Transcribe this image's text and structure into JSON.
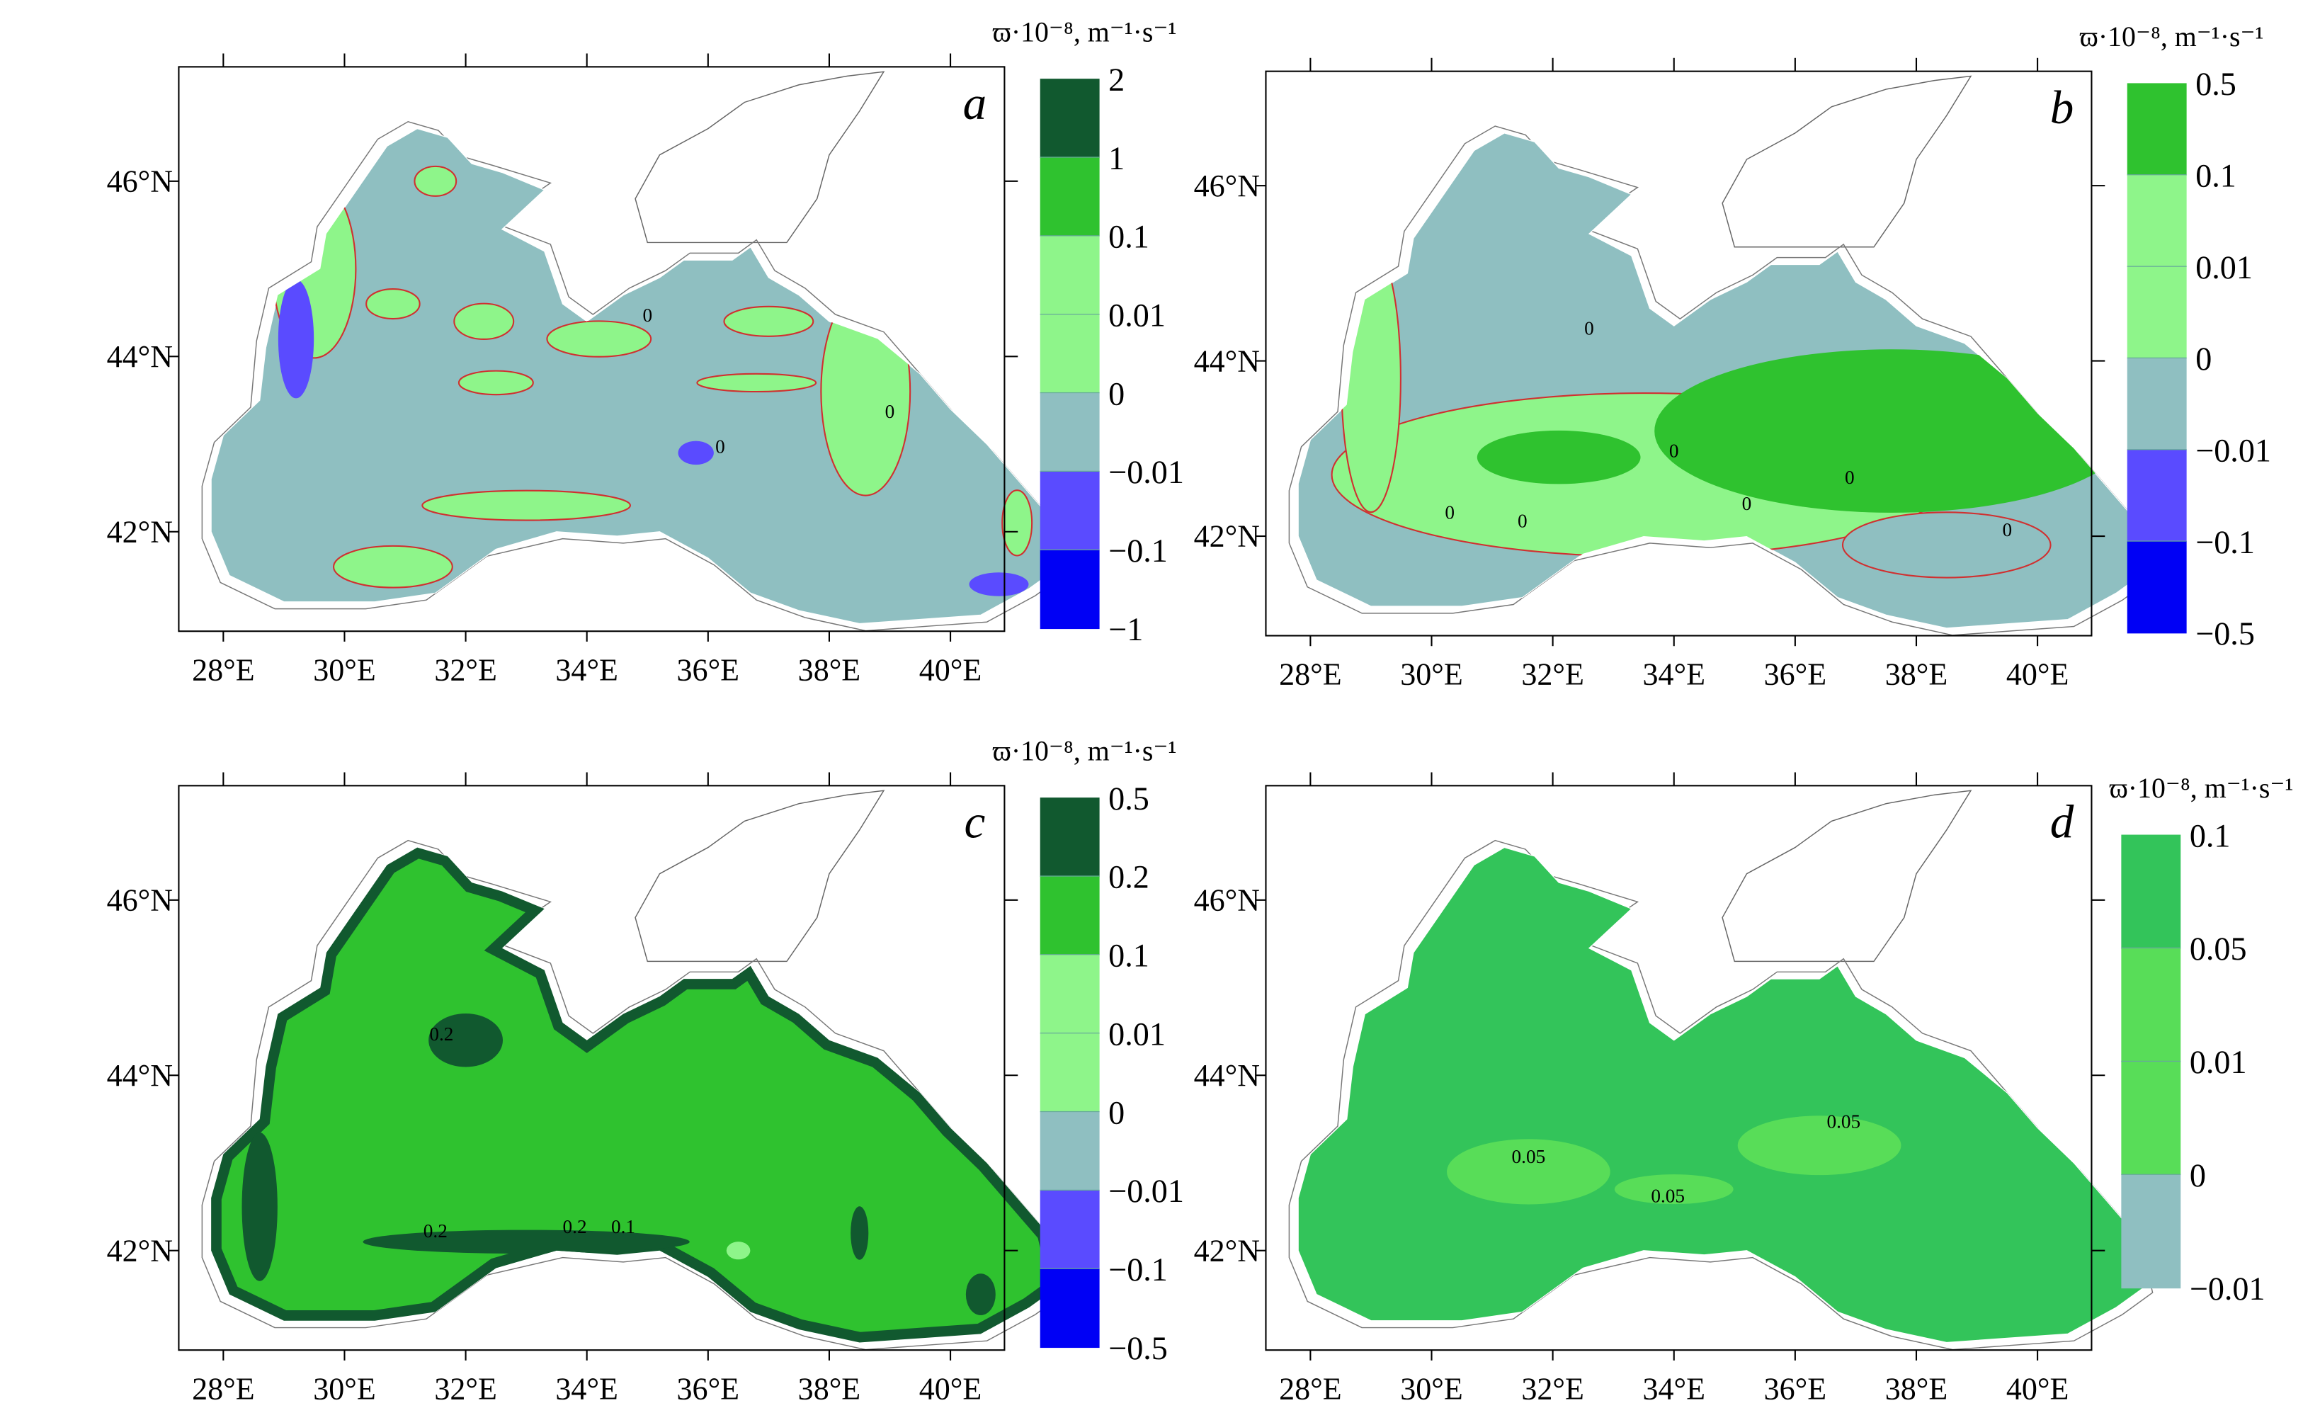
{
  "axes": {
    "lon_ticks": [
      "28°E",
      "30°E",
      "32°E",
      "34°E",
      "36°E",
      "38°E",
      "40°E"
    ],
    "lat_ticks": [
      "46°N",
      "44°N",
      "42°N"
    ]
  },
  "colors": {
    "dark_green": "#11592f",
    "green": "#2fc22f",
    "light_green": "#8ef58a",
    "teal": "#8fbfc1",
    "blue": "#5a4bff",
    "deep_blue": "#0000f5",
    "d_green": "#33c45a",
    "d_light_green": "#58dd58",
    "contour_red": "#d03030"
  },
  "panels": [
    {
      "letter": "a",
      "colorbar_title": "ϖ·10⁻⁸, m⁻¹·s⁻¹",
      "colorbar_labels": [
        "2",
        "1",
        "0.1",
        "0.01",
        "0",
        "−0.01",
        "−0.1",
        "−1"
      ],
      "colorbar_colors": [
        "#11592f",
        "#2fc22f",
        "#8ef58a",
        "#8ef58a",
        "#8fbfc1",
        "#5a4bff",
        "#0000f5"
      ],
      "contour_labels": [
        "0",
        "0",
        "0"
      ]
    },
    {
      "letter": "b",
      "colorbar_title": "ϖ·10⁻⁸, m⁻¹·s⁻¹",
      "colorbar_labels": [
        "0.5",
        "0.1",
        "0.01",
        "0",
        "−0.01",
        "−0.1",
        "−0.5"
      ],
      "colorbar_colors": [
        "#2fc22f",
        "#8ef58a",
        "#8ef58a",
        "#8fbfc1",
        "#5a4bff",
        "#0000f5"
      ],
      "contour_labels": [
        "0",
        "0",
        "0",
        "0",
        "0",
        "0",
        "0"
      ]
    },
    {
      "letter": "c",
      "colorbar_title": "ϖ·10⁻⁸, m⁻¹·s⁻¹",
      "colorbar_labels": [
        "0.5",
        "0.2",
        "0.1",
        "0.01",
        "0",
        "−0.01",
        "−0.1",
        "−0.5"
      ],
      "colorbar_colors": [
        "#11592f",
        "#2fc22f",
        "#8ef58a",
        "#8ef58a",
        "#8fbfc1",
        "#5a4bff",
        "#0000f5"
      ],
      "contour_labels": [
        "0.2",
        "0.2",
        "0.2",
        "0.1"
      ]
    },
    {
      "letter": "d",
      "colorbar_title": "ϖ·10⁻⁸, m⁻¹·s⁻¹",
      "colorbar_labels": [
        "0.1",
        "0.05",
        "0.01",
        "0",
        "−0.01"
      ],
      "colorbar_colors": [
        "#33c45a",
        "#58dd58",
        "#58dd58",
        "#8fbfc1"
      ],
      "contour_labels": [
        "0.05",
        "0.05",
        "0.05"
      ]
    }
  ]
}
